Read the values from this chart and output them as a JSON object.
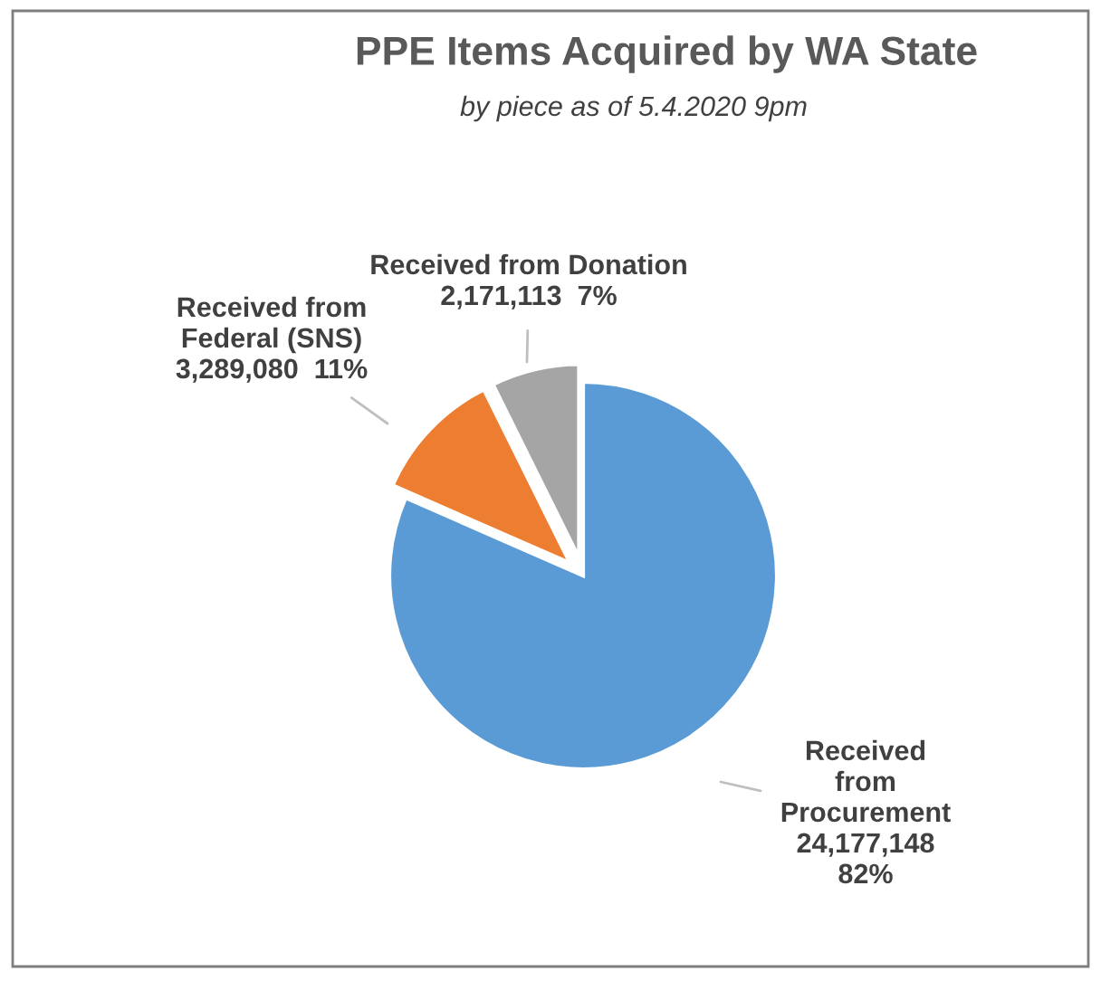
{
  "chart_data": {
    "type": "pie",
    "title": "PPE Items Acquired by WA State",
    "subtitle": "by piece as of 5.4.2020 9pm",
    "categories": [
      "Received\nfrom\nProcurement",
      "Received from\nFederal (SNS)",
      "Received from Donation"
    ],
    "values": [
      24177148,
      3289080,
      2171113
    ],
    "value_labels": [
      "24,177,148\n82%",
      "3,289,080  11%",
      "2,171,113  7%"
    ],
    "colors": [
      "#5b9bd5",
      "#ed7d31",
      "#a5a5a5"
    ]
  }
}
